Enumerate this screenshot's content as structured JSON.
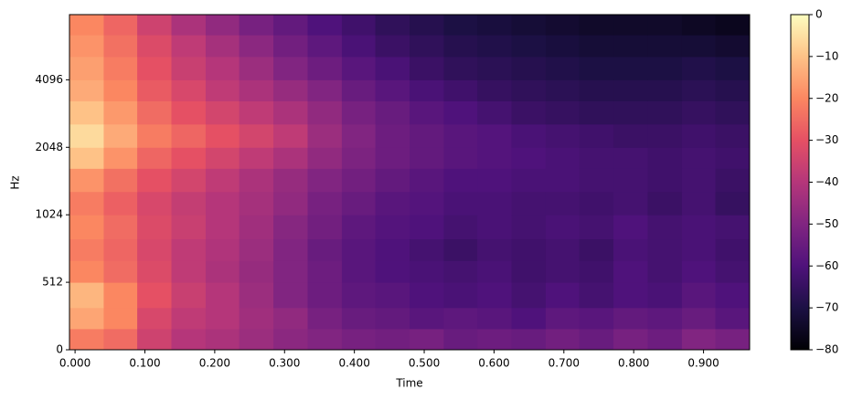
{
  "chart_data": {
    "type": "heatmap",
    "xlabel": "Time",
    "ylabel": "Hz",
    "colormap": "magma",
    "yscale": "symlog",
    "ylinthresh": 512,
    "xlim": [
      -0.008,
      0.966
    ],
    "ylim": [
      0,
      8000
    ],
    "clim": [
      -80,
      0
    ],
    "xticks": [
      {
        "value": 0,
        "label": "0.000"
      },
      {
        "value": 0.1,
        "label": "0.100"
      },
      {
        "value": 0.2,
        "label": "0.200"
      },
      {
        "value": 0.3,
        "label": "0.300"
      },
      {
        "value": 0.4,
        "label": "0.400"
      },
      {
        "value": 0.5,
        "label": "0.500"
      },
      {
        "value": 0.6,
        "label": "0.600"
      },
      {
        "value": 0.7,
        "label": "0.700"
      },
      {
        "value": 0.8,
        "label": "0.800"
      },
      {
        "value": 0.9,
        "label": "0.900"
      }
    ],
    "yticks": [
      0,
      512,
      1024,
      2048,
      4096
    ],
    "cticks": [
      0,
      {
        "value": -10,
        "label": "−10"
      },
      {
        "value": -20,
        "label": "−20"
      },
      {
        "value": -30,
        "label": "−30"
      },
      {
        "value": -40,
        "label": "−40"
      },
      {
        "value": -50,
        "label": "−50"
      },
      {
        "value": -60,
        "label": "−60"
      },
      {
        "value": -70,
        "label": "−70"
      },
      {
        "value": -80,
        "label": "−80"
      }
    ],
    "xbins": [
      -0.008,
      0.041,
      0.089,
      0.138,
      0.187,
      0.235,
      0.284,
      0.333,
      0.382,
      0.43,
      0.479,
      0.528,
      0.576,
      0.625,
      0.674,
      0.722,
      0.771,
      0.82,
      0.869,
      0.917,
      0.966
    ],
    "ybins": [
      0,
      160,
      320,
      512,
      640,
      800,
      1024,
      1300,
      1650,
      2048,
      2600,
      3300,
      4096,
      5200,
      6500,
      8000
    ],
    "values": [
      [
        -22,
        -25,
        -35,
        -40,
        -42,
        -45,
        -48,
        -50,
        -52,
        -53,
        -52,
        -55,
        -54,
        -55,
        -53,
        -55,
        -52,
        -54,
        -50,
        -52
      ],
      [
        -15,
        -20,
        -33,
        -38,
        -40,
        -44,
        -47,
        -52,
        -55,
        -56,
        -58,
        -57,
        -58,
        -60,
        -57,
        -58,
        -56,
        -57,
        -55,
        -58
      ],
      [
        -12,
        -20,
        -30,
        -36,
        -40,
        -45,
        -50,
        -54,
        -57,
        -58,
        -60,
        -61,
        -60,
        -62,
        -60,
        -62,
        -60,
        -61,
        -58,
        -60
      ],
      [
        -20,
        -25,
        -32,
        -38,
        -42,
        -46,
        -50,
        -54,
        -58,
        -60,
        -61,
        -62,
        -61,
        -63,
        -62,
        -63,
        -60,
        -62,
        -60,
        -62
      ],
      [
        -22,
        -26,
        -33,
        -38,
        -41,
        -45,
        -50,
        -55,
        -58,
        -60,
        -62,
        -64,
        -62,
        -63,
        -62,
        -64,
        -61,
        -62,
        -61,
        -63
      ],
      [
        -20,
        -25,
        -32,
        -36,
        -40,
        -44,
        -49,
        -53,
        -57,
        -59,
        -60,
        -62,
        -61,
        -62,
        -61,
        -62,
        -60,
        -62,
        -61,
        -62
      ],
      [
        -22,
        -27,
        -33,
        -37,
        -40,
        -43,
        -47,
        -52,
        -55,
        -58,
        -59,
        -61,
        -61,
        -62,
        -62,
        -63,
        -62,
        -64,
        -62,
        -65
      ],
      [
        -18,
        -24,
        -30,
        -34,
        -38,
        -42,
        -46,
        -50,
        -53,
        -56,
        -58,
        -60,
        -60,
        -61,
        -61,
        -62,
        -62,
        -63,
        -62,
        -64
      ],
      [
        -10,
        -18,
        -26,
        -30,
        -34,
        -38,
        -42,
        -47,
        -51,
        -54,
        -56,
        -58,
        -59,
        -60,
        -61,
        -62,
        -62,
        -63,
        -62,
        -63
      ],
      [
        -6,
        -14,
        -22,
        -26,
        -30,
        -34,
        -38,
        -45,
        -50,
        -54,
        -56,
        -58,
        -59,
        -61,
        -62,
        -63,
        -64,
        -64,
        -63,
        -64
      ],
      [
        -10,
        -17,
        -25,
        -30,
        -34,
        -38,
        -42,
        -47,
        -52,
        -55,
        -58,
        -60,
        -62,
        -64,
        -65,
        -66,
        -66,
        -66,
        -65,
        -66
      ],
      [
        -14,
        -20,
        -28,
        -33,
        -38,
        -42,
        -46,
        -50,
        -55,
        -58,
        -61,
        -63,
        -65,
        -66,
        -67,
        -68,
        -68,
        -68,
        -67,
        -68
      ],
      [
        -16,
        -22,
        -30,
        -36,
        -40,
        -45,
        -50,
        -54,
        -58,
        -61,
        -64,
        -66,
        -67,
        -68,
        -69,
        -70,
        -70,
        -70,
        -69,
        -70
      ],
      [
        -18,
        -24,
        -32,
        -38,
        -43,
        -48,
        -53,
        -57,
        -61,
        -64,
        -66,
        -68,
        -69,
        -70,
        -71,
        -72,
        -72,
        -72,
        -72,
        -73
      ],
      [
        -20,
        -26,
        -35,
        -42,
        -47,
        -52,
        -56,
        -60,
        -63,
        -66,
        -68,
        -70,
        -71,
        -72,
        -73,
        -74,
        -74,
        -74,
        -75,
        -76
      ]
    ]
  }
}
